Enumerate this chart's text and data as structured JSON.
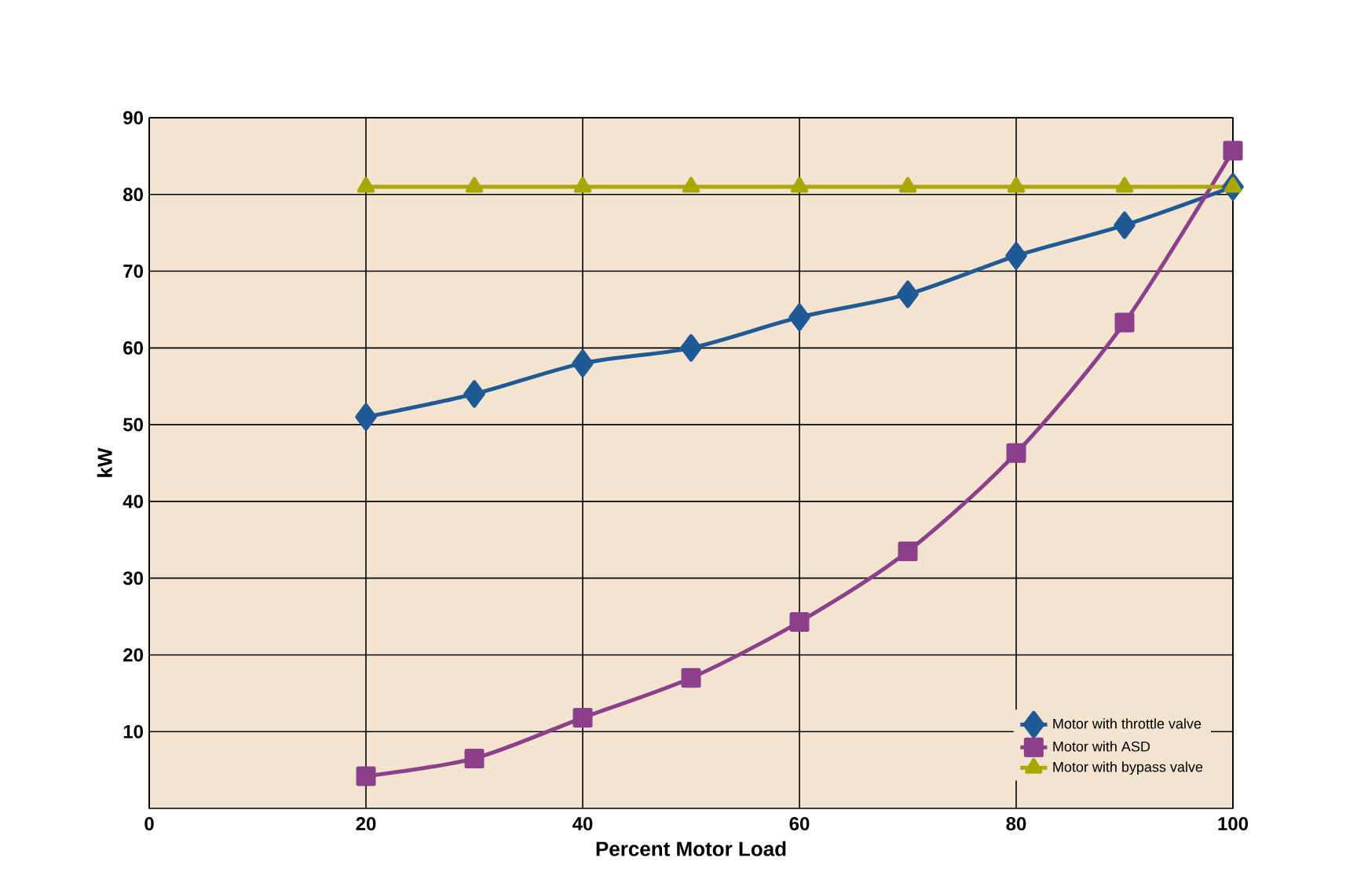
{
  "chart_data": {
    "type": "line",
    "xlabel": "Percent Motor Load",
    "ylabel": "kW",
    "x": [
      20,
      30,
      40,
      50,
      60,
      70,
      80,
      90,
      100
    ],
    "series": [
      {
        "name": "Motor with throttle valve",
        "color": "#1f5a96",
        "marker": "diamond",
        "values": [
          51,
          54,
          58,
          60,
          64,
          67,
          72,
          76,
          81
        ]
      },
      {
        "name": "Motor with ASD",
        "color": "#8b3f8c",
        "marker": "square",
        "values": [
          4.2,
          6.5,
          11.8,
          17,
          24.3,
          33.5,
          46.3,
          63.3,
          85.7
        ]
      },
      {
        "name": "Motor with bypass valve",
        "color": "#a8a800",
        "marker": "triangle",
        "values": [
          81,
          81,
          81,
          81,
          81,
          81,
          81,
          81,
          81
        ]
      }
    ],
    "xlim": [
      0,
      100
    ],
    "xticks": [
      0,
      20,
      40,
      60,
      80,
      100
    ],
    "ylim": [
      0,
      90
    ],
    "yticks": [
      10,
      20,
      30,
      40,
      50,
      60,
      70,
      80,
      90
    ],
    "grid": true,
    "legend": "bottom right",
    "line_style": "solid"
  }
}
